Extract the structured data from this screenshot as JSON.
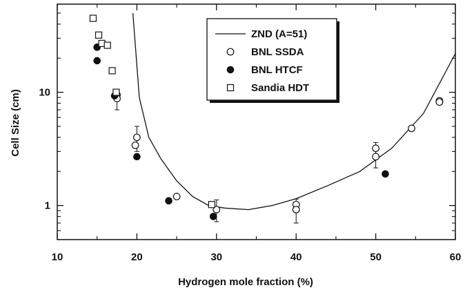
{
  "chart_data": {
    "type": "scatter",
    "title": "",
    "xlabel": "Hydrogen mole fraction (%)",
    "ylabel": "Cell Size (cm)",
    "xlim": [
      10,
      60
    ],
    "ylim": [
      0.5,
      60
    ],
    "yscale": "log",
    "x_ticks": [
      10,
      20,
      30,
      40,
      50,
      60
    ],
    "x_tick_labels": [
      "10",
      "20",
      "30",
      "40",
      "50",
      "60"
    ],
    "y_ticks": [
      1,
      10
    ],
    "y_tick_labels": [
      "1",
      "10"
    ],
    "grid": false,
    "legend_position": "top-center",
    "series": [
      {
        "name": "ZND (A=51)",
        "marker": "line",
        "x": [
          19.5,
          20.3,
          21.5,
          23,
          25,
          27,
          29,
          31,
          34,
          37,
          40,
          44,
          48,
          52,
          56,
          60
        ],
        "y": [
          50,
          9.0,
          4.0,
          2.6,
          1.65,
          1.2,
          1.0,
          0.95,
          0.92,
          1.0,
          1.15,
          1.5,
          2.0,
          3.2,
          6.5,
          22
        ]
      },
      {
        "name": "BNL SSDA",
        "marker": "open-circle",
        "x": [
          17.5,
          17.5,
          19.8,
          20,
          25,
          30,
          40,
          40,
          50,
          50,
          54.5,
          58,
          58
        ],
        "y": [
          9.5,
          8.8,
          3.4,
          4.0,
          1.2,
          0.92,
          1.02,
          0.92,
          3.2,
          2.7,
          4.8,
          8.4,
          8.2
        ],
        "y_err": [
          0,
          1.8,
          0,
          1.0,
          0,
          0.2,
          0,
          0.22,
          0.4,
          0.55,
          0,
          0,
          0
        ]
      },
      {
        "name": "BNL HTCF",
        "marker": "filled-circle",
        "x": [
          15,
          15,
          17.2,
          20,
          24,
          29.6,
          51.2
        ],
        "y": [
          25,
          19,
          9.3,
          2.7,
          1.1,
          0.8,
          1.9
        ]
      },
      {
        "name": "Sandia HDT",
        "marker": "open-square",
        "x": [
          14.5,
          15.2,
          15.6,
          16.3,
          16.9,
          17.4,
          29.4
        ],
        "y": [
          45,
          32,
          27,
          26,
          15.5,
          10,
          1.02
        ]
      }
    ]
  }
}
